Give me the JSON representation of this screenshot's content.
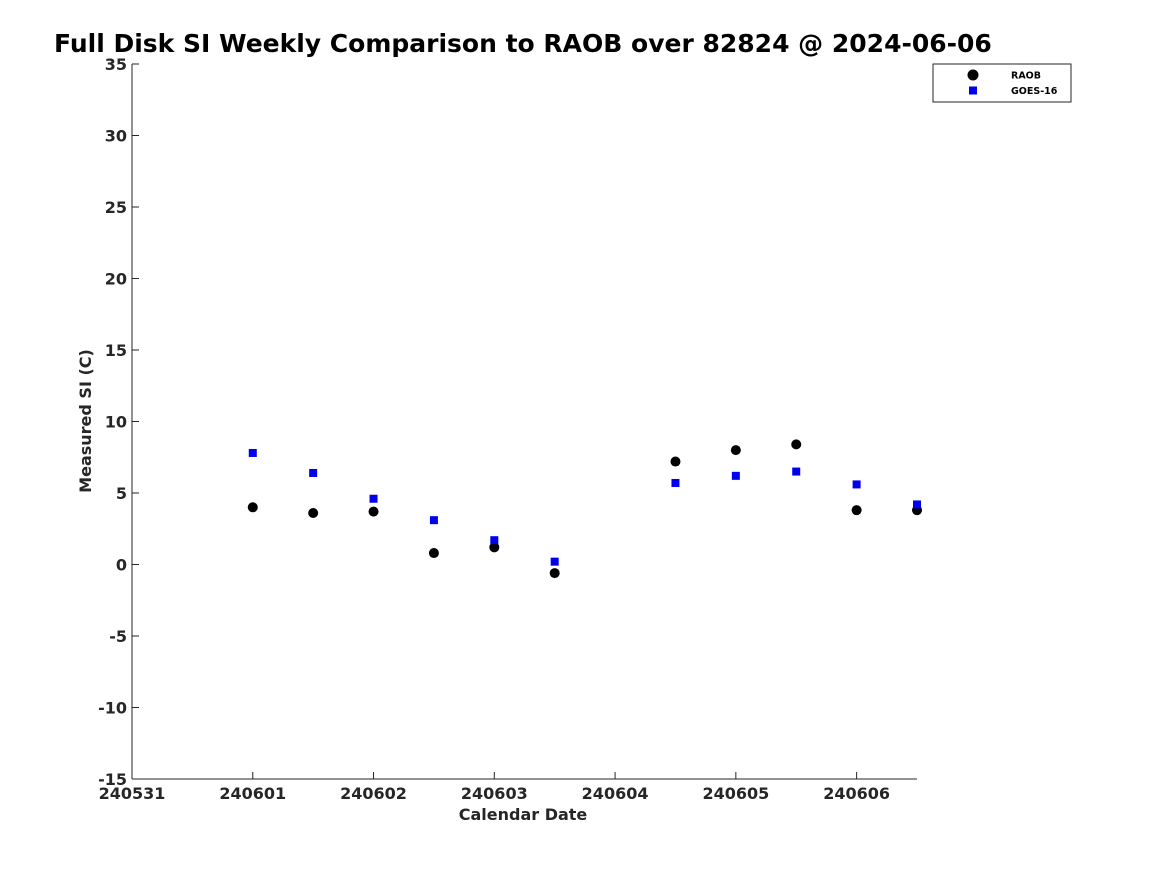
{
  "chart_data": {
    "type": "scatter",
    "title": "Full Disk SI Weekly Comparison to RAOB over 82824 @ 2024-06-06",
    "xlabel": "Calendar Date",
    "ylabel": "Measured SI (C)",
    "x_tick_labels": [
      "240531",
      "240601",
      "240602",
      "240603",
      "240604",
      "240605",
      "240606"
    ],
    "xlim": [
      "240531",
      "240606 12:00"
    ],
    "ylim": [
      -15,
      35
    ],
    "y_ticks": [
      -15,
      -10,
      -5,
      0,
      5,
      10,
      15,
      20,
      25,
      30,
      35
    ],
    "grid": false,
    "legend_position": "top-right",
    "series": [
      {
        "name": "RAOB",
        "marker": "circle",
        "color": "#000000",
        "points": [
          {
            "x": "240601 00:00",
            "y": 4.0
          },
          {
            "x": "240601 12:00",
            "y": 3.6
          },
          {
            "x": "240602 00:00",
            "y": 3.7
          },
          {
            "x": "240602 12:00",
            "y": 0.8
          },
          {
            "x": "240603 00:00",
            "y": 1.2
          },
          {
            "x": "240603 12:00",
            "y": -0.6
          },
          {
            "x": "240604 12:00",
            "y": 7.2
          },
          {
            "x": "240605 00:00",
            "y": 8.0
          },
          {
            "x": "240605 12:00",
            "y": 8.4
          },
          {
            "x": "240606 00:00",
            "y": 3.8
          },
          {
            "x": "240606 12:00",
            "y": 3.8
          }
        ]
      },
      {
        "name": "GOES-16",
        "marker": "square",
        "color": "#0000ee",
        "points": [
          {
            "x": "240601 00:00",
            "y": 7.8
          },
          {
            "x": "240601 12:00",
            "y": 6.4
          },
          {
            "x": "240602 00:00",
            "y": 4.6
          },
          {
            "x": "240602 12:00",
            "y": 3.1
          },
          {
            "x": "240603 00:00",
            "y": 1.7
          },
          {
            "x": "240603 12:00",
            "y": 0.2
          },
          {
            "x": "240604 12:00",
            "y": 5.7
          },
          {
            "x": "240605 00:00",
            "y": 6.2
          },
          {
            "x": "240605 12:00",
            "y": 6.5
          },
          {
            "x": "240606 00:00",
            "y": 5.6
          },
          {
            "x": "240606 12:00",
            "y": 4.2
          }
        ]
      }
    ]
  }
}
